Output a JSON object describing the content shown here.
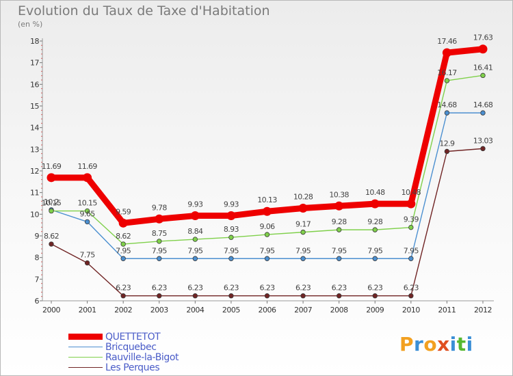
{
  "page": {
    "title": "Evolution du Taux de Taxe d'Habitation",
    "subtitle": "(en %)",
    "logo_text": "Proxiti",
    "logo_colors": [
      "#f2a020",
      "#3b8fd6",
      "#f2a020",
      "#e05020",
      "#3b8fd6",
      "#56b830",
      "#3b8fd6"
    ]
  },
  "chart_data": {
    "type": "line",
    "title": "Evolution du Taux de Taxe d'Habitation",
    "subtitle": "(en %)",
    "xlabel": "",
    "ylabel": "",
    "x": [
      "2000",
      "2001",
      "2002",
      "2003",
      "2004",
      "2005",
      "2006",
      "2007",
      "2008",
      "2009",
      "2010",
      "2011",
      "2012"
    ],
    "ylim": [
      6,
      18
    ],
    "yticks": [
      6,
      7,
      8,
      9,
      10,
      11,
      12,
      13,
      14,
      15,
      16,
      17,
      18
    ],
    "grid": false,
    "legend_position": "bottom-left",
    "series": [
      {
        "name": "QUETTETOT",
        "color": "#ee0000",
        "values": [
          11.69,
          11.69,
          9.59,
          9.78,
          9.93,
          9.93,
          10.13,
          10.28,
          10.38,
          10.48,
          10.48,
          17.46,
          17.63
        ],
        "labels": [
          "11.69",
          "11.69",
          "9.59",
          "9.78",
          "9.93",
          "9.93",
          "10.13",
          "10.28",
          "10.38",
          "10.48",
          "10.48",
          "17.46",
          "17.63"
        ]
      },
      {
        "name": "Bricquebec",
        "color": "#4b8fd0",
        "values": [
          10.2,
          9.65,
          7.95,
          7.95,
          7.95,
          7.95,
          7.95,
          7.95,
          7.95,
          7.95,
          7.95,
          14.68,
          14.68
        ],
        "labels": [
          "10.2",
          "9.65",
          "7.95",
          "7.95",
          "7.95",
          "7.95",
          "7.95",
          "7.95",
          "7.95",
          "7.95",
          "7.95",
          "14.68",
          "14.68"
        ]
      },
      {
        "name": "Rauville-la-Bigot",
        "color": "#7fd04a",
        "values": [
          10.15,
          10.15,
          8.62,
          8.75,
          8.84,
          8.93,
          9.06,
          9.17,
          9.28,
          9.28,
          9.39,
          16.17,
          16.41
        ],
        "labels": [
          "10.15",
          "10.15",
          "8.62",
          "8.75",
          "8.84",
          "8.93",
          "9.06",
          "9.17",
          "9.28",
          "9.28",
          "9.39",
          "16.17",
          "16.41"
        ]
      },
      {
        "name": "Les Perques",
        "color": "#702424",
        "values": [
          8.62,
          7.75,
          6.23,
          6.23,
          6.23,
          6.23,
          6.23,
          6.23,
          6.23,
          6.23,
          6.23,
          12.9,
          13.03
        ],
        "labels": [
          "8.62",
          "7.75",
          "6.23",
          "6.23",
          "6.23",
          "6.23",
          "6.23",
          "6.23",
          "6.23",
          "6.23",
          "6.23",
          "12.9",
          "13.03"
        ]
      }
    ]
  }
}
